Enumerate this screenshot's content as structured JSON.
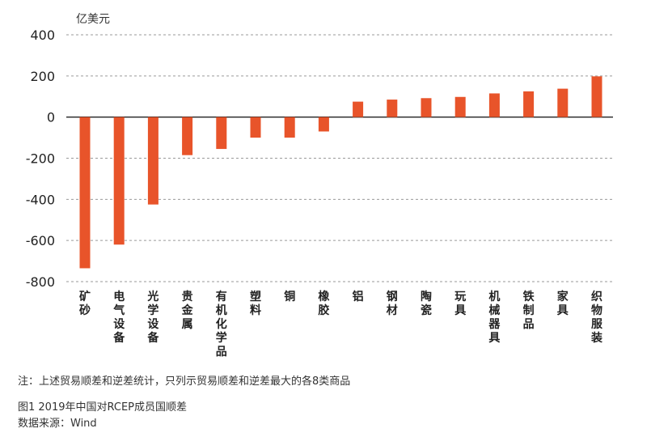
{
  "chart_data": {
    "type": "bar",
    "y_unit": "亿美元",
    "categories": [
      "矿砂",
      "电气设备",
      "光学设备",
      "贵金属",
      "有机化学品",
      "塑料",
      "铜",
      "橡胶",
      "铝",
      "钢材",
      "陶瓷",
      "玩具",
      "机械器具",
      "铁制品",
      "家具",
      "织物服装"
    ],
    "values": [
      -735,
      -620,
      -425,
      -185,
      -155,
      -100,
      -100,
      -70,
      75,
      85,
      92,
      98,
      115,
      125,
      138,
      198
    ],
    "ylim": [
      -800,
      400
    ],
    "yticks": [
      400,
      200,
      0,
      -200,
      -400,
      -600,
      -800
    ],
    "gridlines": "dashed",
    "bar_color": "#E8542A"
  },
  "note": "注：上述贸易顺差和逆差统计，只列示贸易顺差和逆差最大的各8类商品",
  "caption": "图1  2019年中国对RCEP成员国顺差",
  "source": "数据来源：Wind"
}
